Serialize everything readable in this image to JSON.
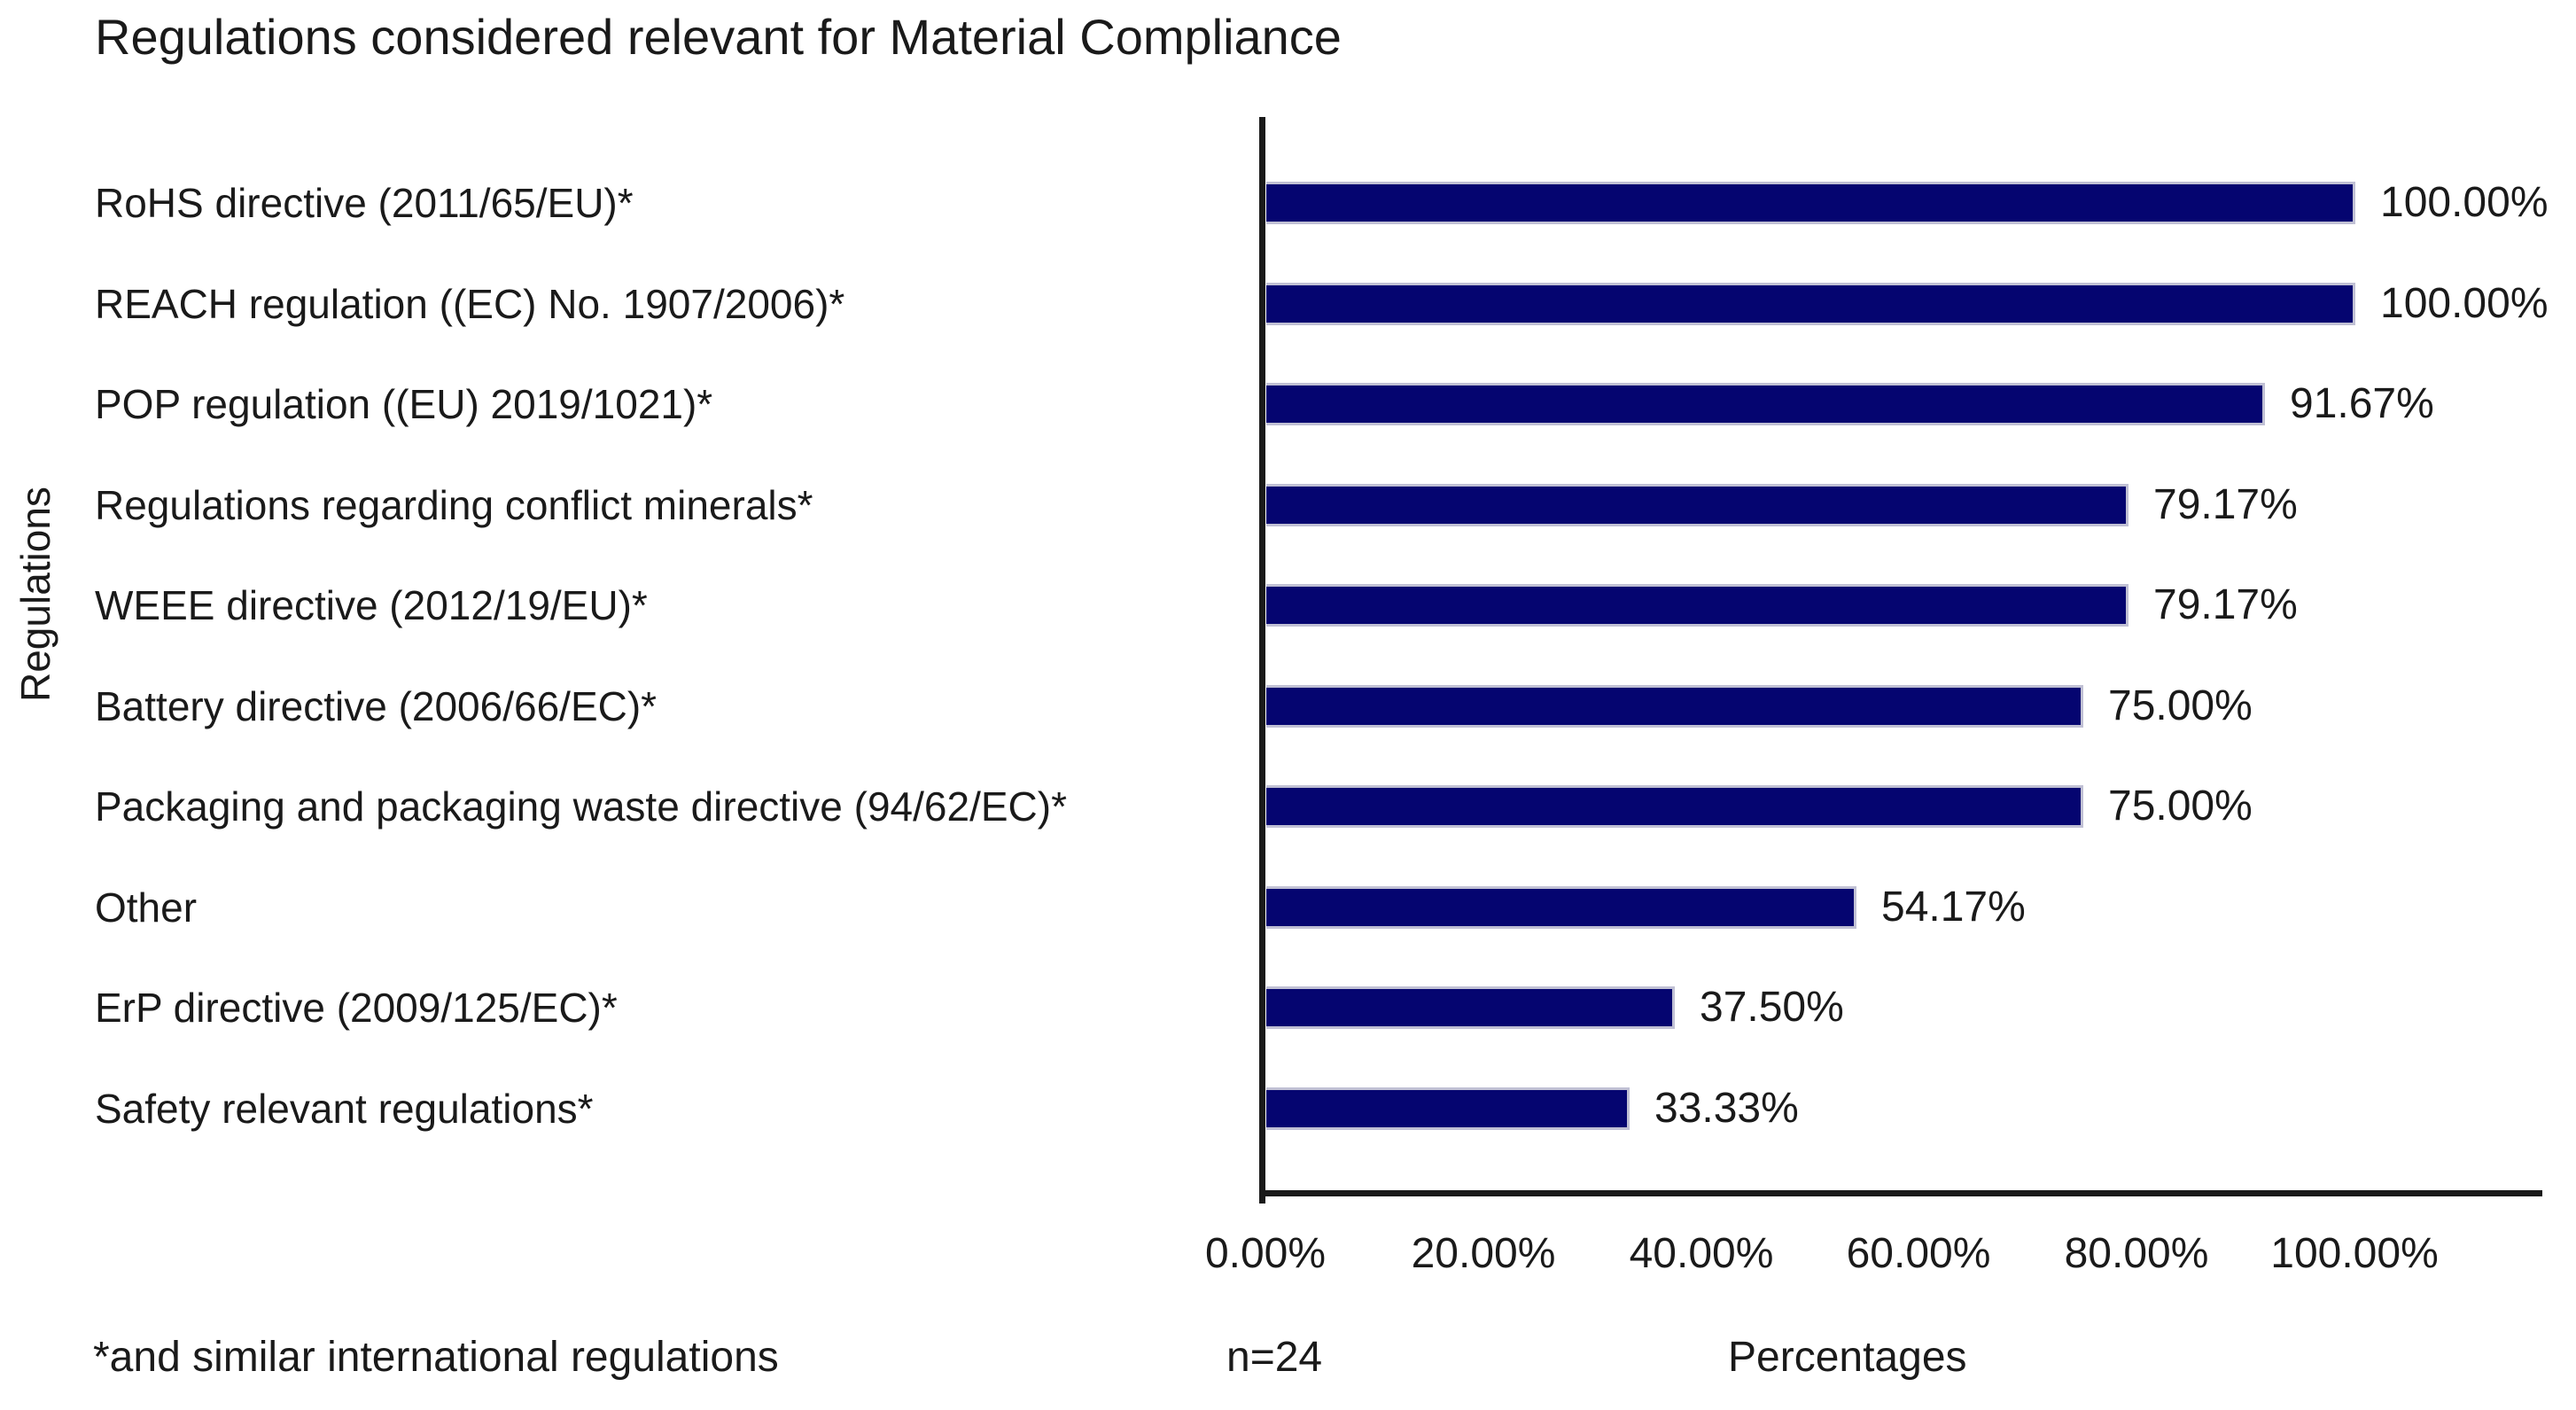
{
  "title": "Regulations considered relevant for Material Compliance",
  "y_axis_label": "Regulations",
  "x_axis_label": "Percentages",
  "footnote": "*and similar international regulations",
  "sample_size": "n=24",
  "colors": {
    "bar_fill": "#050570",
    "bar_border": "#c0c0d4",
    "axis": "#1a1a1a",
    "text": "#1a1a1a"
  },
  "chart_data": {
    "type": "bar",
    "orientation": "horizontal",
    "title": "Regulations considered relevant for Material Compliance",
    "xlabel": "Percentages",
    "ylabel": "Regulations",
    "xlim": [
      0,
      100
    ],
    "grid": false,
    "legend": "none",
    "categories": [
      "RoHS directive (2011/65/EU)*",
      "REACH regulation ((EC) No. 1907/2006)*",
      "POP regulation ((EU) 2019/1021)*",
      "Regulations regarding conflict minerals*",
      "WEEE directive (2012/19/EU)*",
      "Battery directive (2006/66/EC)*",
      "Packaging and packaging waste directive (94/62/EC)*",
      "Other",
      "ErP directive (2009/125/EC)*",
      "Safety relevant regulations*"
    ],
    "values": [
      100.0,
      100.0,
      91.67,
      79.17,
      79.17,
      75.0,
      75.0,
      54.17,
      37.5,
      33.33
    ],
    "value_labels": [
      "100.00%",
      "100.00%",
      "91.67%",
      "79.17%",
      "79.17%",
      "75.00%",
      "75.00%",
      "54.17%",
      "37.50%",
      "33.33%"
    ],
    "x_ticks": {
      "values": [
        0,
        20,
        40,
        60,
        80,
        100
      ],
      "labels": [
        "0.00%",
        "20.00%",
        "40.00%",
        "60.00%",
        "80.00%",
        "100.00%"
      ]
    },
    "annotations": [
      "*and similar international regulations",
      "n=24"
    ]
  }
}
